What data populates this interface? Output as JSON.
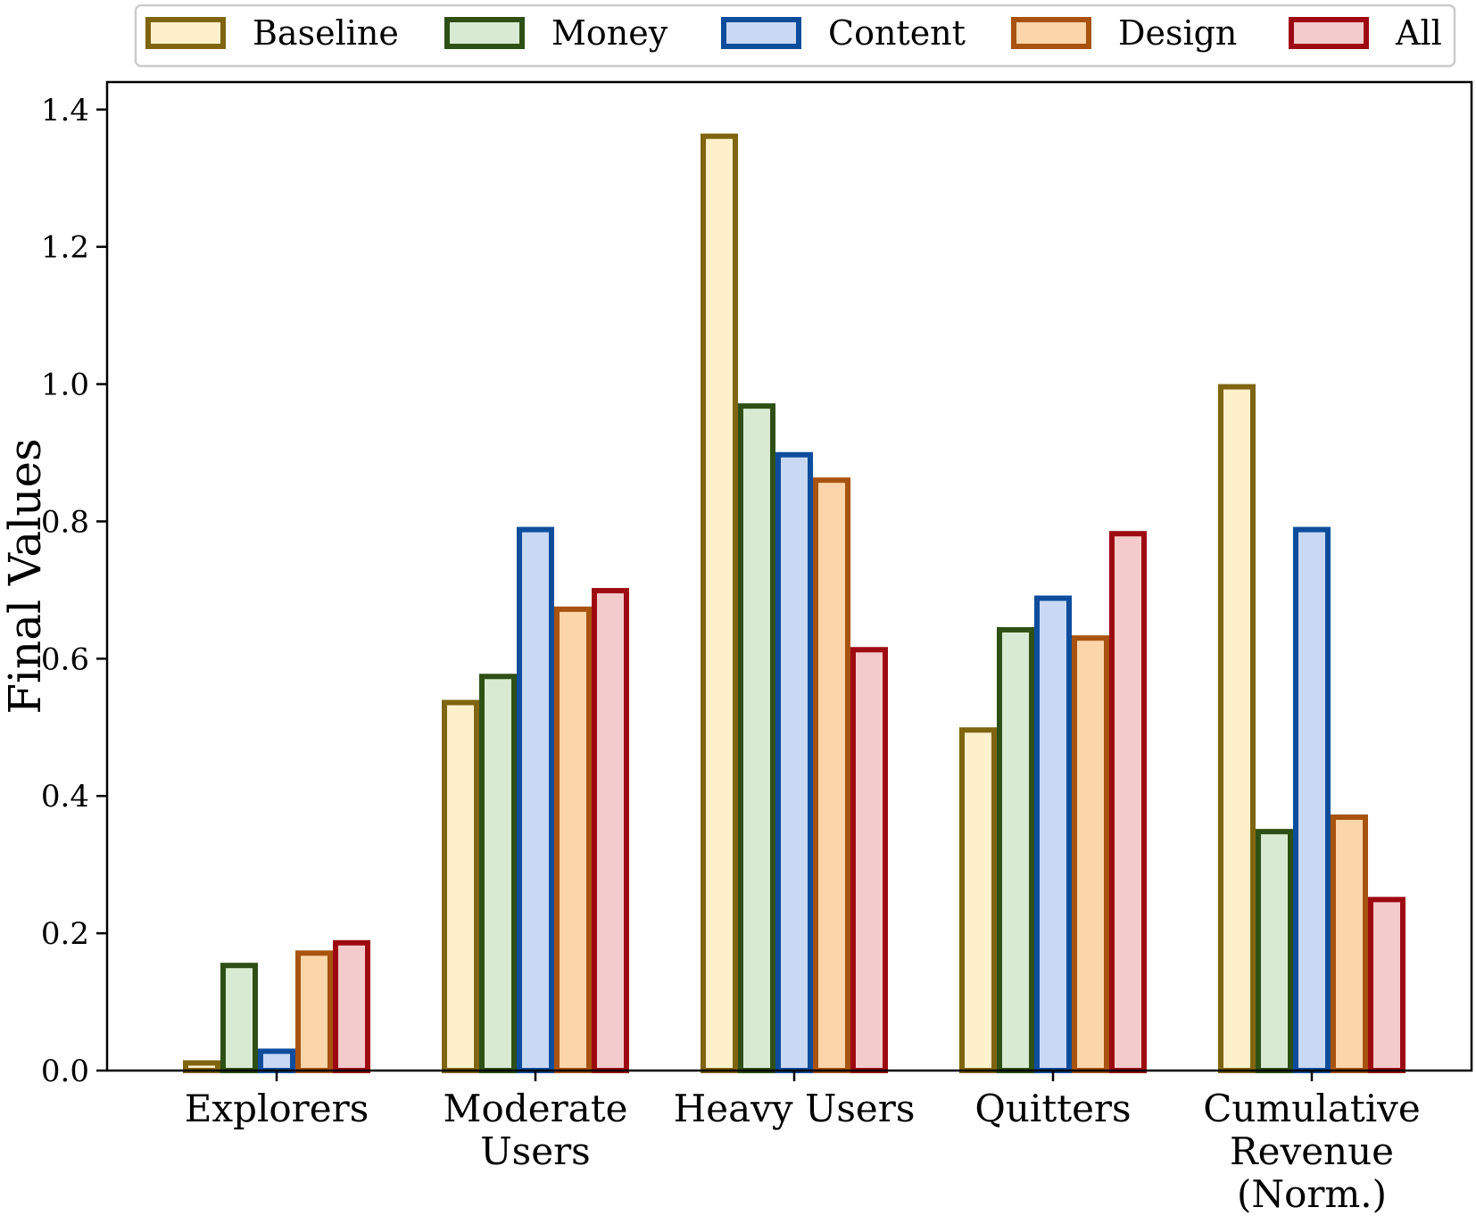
{
  "chart_data": {
    "type": "bar",
    "ylabel": "Final Values",
    "xlabel": "",
    "title": "",
    "categories": [
      [
        "Explorers"
      ],
      [
        "Moderate",
        "Users"
      ],
      [
        "Heavy Users"
      ],
      [
        "Quitters"
      ],
      [
        "Cumulative",
        "Revenue",
        "(Norm.)"
      ]
    ],
    "ylim": [
      0,
      1.44
    ],
    "yticks": [
      "0.0",
      "0.2",
      "0.4",
      "0.6",
      "0.8",
      "1.0",
      "1.2",
      "1.4"
    ],
    "grid": false,
    "legend_position": "top",
    "series": [
      {
        "name": "Baseline",
        "values": [
          0.015,
          0.54,
          1.365,
          0.5,
          1.0
        ],
        "edge": "#7f6510",
        "fill": "#fff0cc"
      },
      {
        "name": "Money",
        "values": [
          0.157,
          0.578,
          0.972,
          0.646,
          0.352
        ],
        "edge": "#2e5016",
        "fill": "#d9ead2"
      },
      {
        "name": "Content",
        "values": [
          0.032,
          0.792,
          0.901,
          0.692,
          0.792
        ],
        "edge": "#0d4d9c",
        "fill": "#c9d9f4"
      },
      {
        "name": "Design",
        "values": [
          0.175,
          0.676,
          0.864,
          0.634,
          0.373
        ],
        "edge": "#a8530f",
        "fill": "#fdd5aa"
      },
      {
        "name": "All",
        "values": [
          0.19,
          0.703,
          0.617,
          0.786,
          0.253
        ],
        "edge": "#9e0a12",
        "fill": "#f4cbcd"
      }
    ]
  }
}
